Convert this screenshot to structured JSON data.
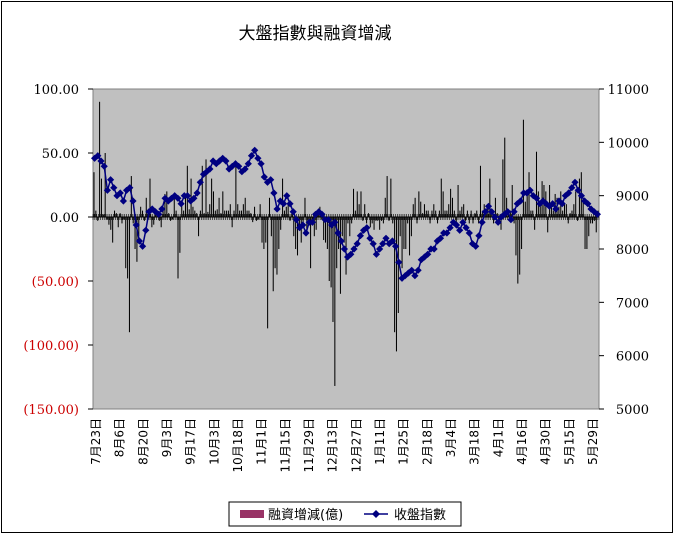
{
  "chart_data": {
    "type": "bar+line",
    "title": "大盤指數與融資增減",
    "legend": {
      "placement": "bottom",
      "entries": [
        "融資增減(億)",
        "收盤指數"
      ]
    },
    "colors": {
      "bars": "#000000",
      "line": "#000080",
      "plot_bg": "#c0c0c0",
      "negative_tick": "#cc0000",
      "legend_bar_swatch": "#993366"
    },
    "y_left": {
      "min": -150,
      "max": 100,
      "ticks": [
        "100.00",
        "50.00",
        "0.00",
        "(50.00)",
        "(100.00)",
        "(150.00)"
      ]
    },
    "y_right": {
      "min": 5000,
      "max": 11000,
      "ticks": [
        "11000",
        "10000",
        "9000",
        "8000",
        "7000",
        "6000",
        "5000"
      ]
    },
    "x_labels": [
      "7月23日",
      "8月6日",
      "8月20日",
      "9月3日",
      "9月17日",
      "10月3日",
      "10月18日",
      "11月1日",
      "11月15日",
      "11月29日",
      "12月13日",
      "12月27日",
      "1月11日",
      "1月25日",
      "2月18日",
      "3月4日",
      "3月18日",
      "4月1日",
      "4月16日",
      "4月30日",
      "5月15日",
      "5月29日"
    ],
    "series": [
      {
        "name": "融資增減(億)",
        "type": "bar",
        "values": [
          35,
          5,
          -3,
          90,
          30,
          2,
          50,
          -2,
          -6,
          -10,
          -20,
          5,
          3,
          -8,
          3,
          -5,
          -2,
          -40,
          -48,
          -90,
          32,
          -5,
          -25,
          -35,
          -15,
          8,
          5,
          -3,
          15,
          4,
          30,
          -8,
          -6,
          5,
          2,
          -3,
          -8,
          5,
          18,
          20,
          3,
          -3,
          -2,
          15,
          5,
          -48,
          -28,
          10,
          5,
          18,
          40,
          6,
          30,
          8,
          5,
          3,
          -15,
          5,
          40,
          3,
          45,
          4,
          10,
          30,
          20,
          5,
          6,
          15,
          3,
          20,
          5,
          5,
          5,
          10,
          -8,
          5,
          40,
          10,
          5,
          5,
          10,
          15,
          5,
          5,
          3,
          -4,
          8,
          -3,
          -2,
          10,
          -20,
          -25,
          -20,
          -87,
          15,
          -15,
          -58,
          -40,
          -45,
          -25,
          -10,
          30,
          5,
          8,
          10,
          -3,
          5,
          -15,
          -25,
          -30,
          -10,
          -20,
          -8,
          15,
          -10,
          -5,
          -40,
          -5,
          -15,
          -10,
          3,
          8,
          -2,
          -18,
          -20,
          -25,
          -50,
          -55,
          -82,
          -132,
          -40,
          -25,
          -60,
          -15,
          -20,
          -45,
          -5,
          -15,
          -5,
          22,
          5,
          20,
          10,
          20,
          -3,
          10,
          -5,
          3,
          -8,
          -5,
          -10,
          -3,
          -3,
          -10,
          -3,
          -5,
          15,
          32,
          -3,
          30,
          -5,
          -90,
          -105,
          -75,
          -15,
          -40,
          -25,
          -25,
          -5,
          -30,
          -15,
          10,
          15,
          -5,
          20,
          12,
          3,
          10,
          5,
          5,
          -5,
          5,
          10,
          5,
          -5,
          5,
          30,
          20,
          5,
          5,
          10,
          22,
          15,
          5,
          -5,
          25,
          5,
          8,
          10,
          -3,
          5,
          -5,
          5,
          -5,
          3,
          5,
          -5,
          40,
          5,
          10,
          5,
          8,
          30,
          5,
          -5,
          15,
          3,
          -5,
          -10,
          45,
          62,
          15,
          5,
          5,
          25,
          -5,
          -30,
          -52,
          -45,
          -25,
          76,
          12,
          20,
          35,
          5,
          5,
          -10,
          51,
          20,
          10,
          28,
          25,
          20,
          -12,
          25,
          10,
          5,
          18,
          15,
          8,
          20,
          5,
          10,
          10,
          -5,
          3,
          5,
          10,
          20,
          -3,
          30,
          35,
          15,
          -25,
          -25,
          -15,
          -5,
          -5,
          -3,
          -12,
          5
        ]
      },
      {
        "name": "收盤指數",
        "type": "line",
        "values": [
          9700,
          9750,
          9650,
          9550,
          9100,
          9300,
          9150,
          9000,
          9050,
          8900,
          9100,
          9150,
          8900,
          8450,
          8150,
          8050,
          8350,
          8700,
          8750,
          8700,
          8650,
          8750,
          8950,
          8900,
          8950,
          9000,
          8950,
          8850,
          9000,
          9000,
          8900,
          8950,
          9050,
          9250,
          9400,
          9450,
          9500,
          9650,
          9600,
          9650,
          9700,
          9650,
          9500,
          9550,
          9600,
          9550,
          9450,
          9500,
          9600,
          9750,
          9850,
          9700,
          9600,
          9350,
          9250,
          9300,
          9050,
          8750,
          8900,
          8850,
          9000,
          8850,
          8700,
          8550,
          8400,
          8450,
          8300,
          8500,
          8500,
          8650,
          8700,
          8650,
          8550,
          8550,
          8450,
          8500,
          8300,
          8150,
          8000,
          7850,
          7900,
          8000,
          8100,
          8250,
          8350,
          8400,
          8200,
          8100,
          7900,
          8000,
          8100,
          8200,
          8100,
          8150,
          8050,
          7750,
          7450,
          7500,
          7550,
          7600,
          7500,
          7600,
          7800,
          7850,
          7900,
          8000,
          8000,
          8150,
          8200,
          8300,
          8300,
          8400,
          8500,
          8450,
          8350,
          8500,
          8400,
          8300,
          8100,
          8050,
          8250,
          8500,
          8700,
          8800,
          8700,
          8600,
          8500,
          8600,
          8650,
          8700,
          8550,
          8700,
          8850,
          8900,
          9050,
          9050,
          9100,
          9000,
          8950,
          8850,
          8900,
          8850,
          8800,
          8850,
          8750,
          8900,
          8850,
          9000,
          9050,
          9150,
          9250,
          9100,
          9000,
          8900,
          8850,
          8750,
          8700,
          8650
        ]
      }
    ]
  }
}
